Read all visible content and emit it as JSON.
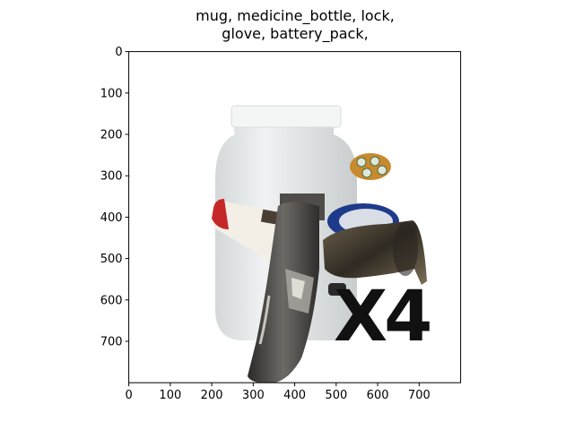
{
  "figure": {
    "title_line1": "mug, medicine_bottle, lock,",
    "title_line2": "glove, battery_pack,"
  },
  "image": {
    "objects": [
      "mug",
      "medicine_bottle",
      "lock",
      "glove",
      "battery_pack"
    ],
    "overlay_text": "X4",
    "width": 800,
    "height": 800
  },
  "axes": {
    "x_ticks": [
      "0",
      "100",
      "200",
      "300",
      "400",
      "500",
      "600",
      "700"
    ],
    "y_ticks": [
      "0",
      "100",
      "200",
      "300",
      "400",
      "500",
      "600",
      "700"
    ],
    "xlim": [
      0,
      800
    ],
    "ylim": [
      800,
      0
    ]
  },
  "colors": {
    "bottle": "#e6e9ea",
    "cap": "#f2f3f3",
    "glove_dark": "#3f3d3c",
    "glove_light": "#a9a6a1",
    "mug": "#4a4234",
    "lock_blue": "#1e3a8a",
    "battery_pack": "#c78a2c",
    "pill_bottle_red": "#c62828",
    "text_black": "#111111"
  }
}
